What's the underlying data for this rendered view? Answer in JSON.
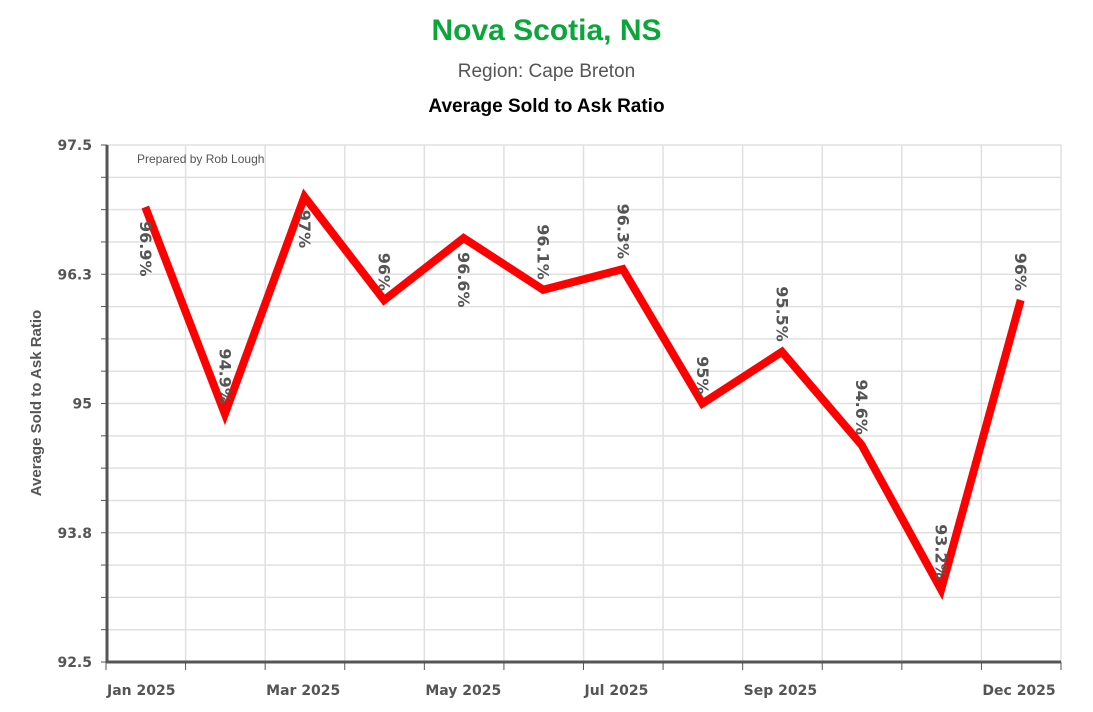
{
  "chart_data": {
    "type": "line",
    "title": "Nova Scotia, NS",
    "subtitle": "Region: Cape Breton",
    "chart_title": "Average Sold to Ask Ratio",
    "annotation": "Prepared by Rob Lough",
    "xlabel": "",
    "ylabel": "Average Sold to Ask Ratio",
    "ylim": [
      92.5,
      97.5
    ],
    "yticks": [
      "97.5",
      "96.3",
      "95",
      "93.8",
      "92.5"
    ],
    "xticks": [
      "Jan 2025",
      "Mar 2025",
      "May 2025",
      "Jul 2025",
      "Sep 2025",
      "Dec 2025"
    ],
    "grid": true,
    "series": [
      {
        "name": "Average Sold to Ask Ratio",
        "color": "#ff0000",
        "x": [
          "2025-01",
          "2025-02",
          "2025-03",
          "2025-04",
          "2025-05",
          "2025-06",
          "2025-07",
          "2025-08",
          "2025-09",
          "2025-10",
          "2025-11",
          "2025-12"
        ],
        "values": [
          96.9,
          94.9,
          97.0,
          96.0,
          96.6,
          96.1,
          96.3,
          95.0,
          95.5,
          94.6,
          93.2,
          96.0
        ],
        "labels": [
          "96.9%",
          "94.9%",
          "97%",
          "96%",
          "96.6%",
          "96.1%",
          "96.3%",
          "95%",
          "95.5%",
          "94.6%",
          "93.2%",
          "96%"
        ]
      }
    ]
  }
}
